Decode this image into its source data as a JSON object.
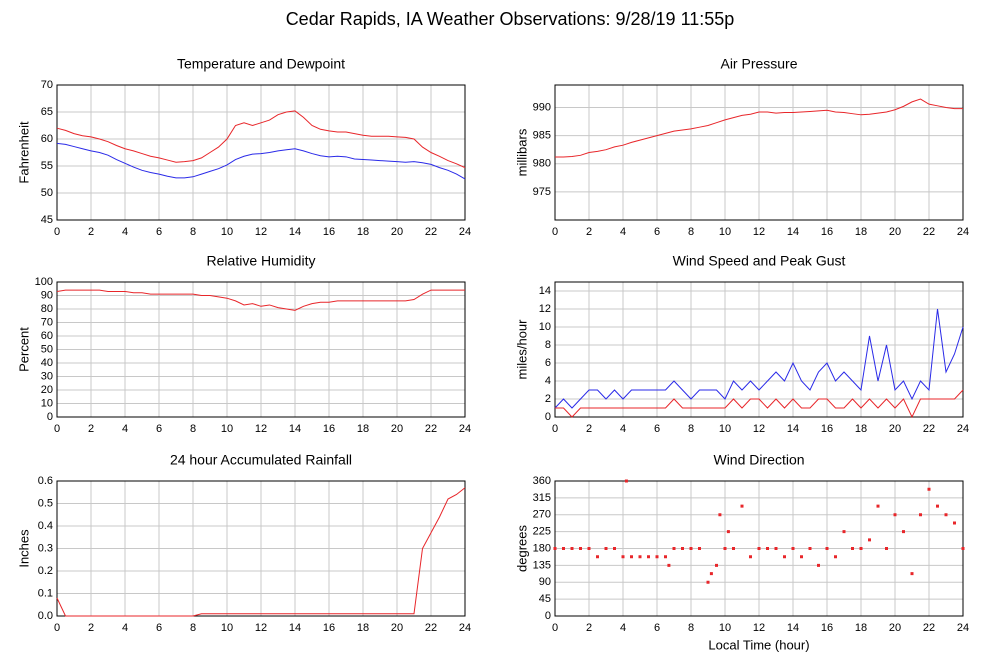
{
  "title": "Cedar Rapids, IA Weather Observations: 9/28/19 11:55p",
  "chart_data": [
    {
      "type": "line",
      "title": "Temperature and Dewpoint",
      "ylabel": "Fahrenheit",
      "grid": true,
      "x": [
        0,
        0.5,
        1,
        1.5,
        2,
        2.5,
        3,
        3.5,
        4,
        4.5,
        5,
        5.5,
        6,
        6.5,
        7,
        7.5,
        8,
        8.5,
        9,
        9.5,
        10,
        10.5,
        11,
        11.5,
        12,
        12.5,
        13,
        13.5,
        14,
        14.5,
        15,
        15.5,
        16,
        16.5,
        17,
        17.5,
        18,
        18.5,
        19,
        19.5,
        20,
        20.5,
        21,
        21.5,
        22,
        22.5,
        23,
        23.5,
        24
      ],
      "xlim": [
        0,
        24
      ],
      "xticks": [
        0,
        2,
        4,
        6,
        8,
        10,
        12,
        14,
        16,
        18,
        20,
        22,
        24
      ],
      "ylim": [
        45,
        70
      ],
      "yticks": [
        45,
        50,
        55,
        60,
        65,
        70
      ],
      "series": [
        {
          "color": "#e8262a",
          "values": [
            62,
            61.6,
            61,
            60.6,
            60.4,
            60,
            59.5,
            58.8,
            58.2,
            57.8,
            57.3,
            56.8,
            56.5,
            56.1,
            55.7,
            55.8,
            56,
            56.5,
            57.5,
            58.5,
            60,
            62.5,
            63,
            62.5,
            63,
            63.5,
            64.5,
            65,
            65.2,
            64,
            62.5,
            61.8,
            61.5,
            61.3,
            61.3,
            61,
            60.7,
            60.5,
            60.5,
            60.5,
            60.4,
            60.3,
            60,
            58.5,
            57.5,
            56.8,
            56,
            55.4,
            54.7
          ]
        },
        {
          "color": "#2a2ae8",
          "values": [
            59.2,
            59,
            58.6,
            58.2,
            57.8,
            57.5,
            57,
            56.2,
            55.5,
            54.8,
            54.2,
            53.8,
            53.5,
            53.1,
            52.8,
            52.8,
            53,
            53.5,
            54,
            54.5,
            55.2,
            56.2,
            56.8,
            57.2,
            57.3,
            57.5,
            57.8,
            58,
            58.2,
            57.8,
            57.3,
            56.9,
            56.7,
            56.8,
            56.7,
            56.3,
            56.2,
            56.1,
            56,
            55.9,
            55.8,
            55.7,
            55.8,
            55.6,
            55.3,
            54.7,
            54.2,
            53.5,
            52.6
          ]
        }
      ]
    },
    {
      "type": "line",
      "title": "Air Pressure",
      "ylabel": "millibars",
      "grid": true,
      "x": [
        0,
        0.5,
        1,
        1.5,
        2,
        2.5,
        3,
        3.5,
        4,
        4.5,
        5,
        5.5,
        6,
        6.5,
        7,
        7.5,
        8,
        8.5,
        9,
        9.5,
        10,
        10.5,
        11,
        11.5,
        12,
        12.5,
        13,
        13.5,
        14,
        14.5,
        15,
        15.5,
        16,
        16.5,
        17,
        17.5,
        18,
        18.5,
        19,
        19.5,
        20,
        20.5,
        21,
        21.5,
        22,
        22.5,
        23,
        23.5,
        24
      ],
      "xlim": [
        0,
        24
      ],
      "xticks": [
        0,
        2,
        4,
        6,
        8,
        10,
        12,
        14,
        16,
        18,
        20,
        22,
        24
      ],
      "ylim": [
        970,
        994
      ],
      "yticks": [
        975,
        980,
        985,
        990
      ],
      "series": [
        {
          "color": "#e8262a",
          "values": [
            981.2,
            981.2,
            981.3,
            981.5,
            982,
            982.2,
            982.5,
            983,
            983.3,
            983.8,
            984.2,
            984.6,
            985,
            985.4,
            985.8,
            986,
            986.2,
            986.5,
            986.8,
            987.3,
            987.8,
            988.2,
            988.6,
            988.8,
            989.2,
            989.2,
            989,
            989.1,
            989.1,
            989.2,
            989.3,
            989.4,
            989.5,
            989.2,
            989.1,
            988.9,
            988.7,
            988.8,
            989,
            989.2,
            989.6,
            990.2,
            991,
            991.5,
            990.6,
            990.3,
            990,
            989.8,
            989.8
          ]
        }
      ]
    },
    {
      "type": "line",
      "title": "Relative Humidity",
      "ylabel": "Percent",
      "grid": true,
      "x": [
        0,
        0.5,
        1,
        1.5,
        2,
        2.5,
        3,
        3.5,
        4,
        4.5,
        5,
        5.5,
        6,
        6.5,
        7,
        7.5,
        8,
        8.5,
        9,
        9.5,
        10,
        10.5,
        11,
        11.5,
        12,
        12.5,
        13,
        13.5,
        14,
        14.5,
        15,
        15.5,
        16,
        16.5,
        17,
        17.5,
        18,
        18.5,
        19,
        19.5,
        20,
        20.5,
        21,
        21.5,
        22,
        22.5,
        23,
        23.5,
        24
      ],
      "xlim": [
        0,
        24
      ],
      "xticks": [
        0,
        2,
        4,
        6,
        8,
        10,
        12,
        14,
        16,
        18,
        20,
        22,
        24
      ],
      "ylim": [
        0,
        100
      ],
      "yticks": [
        0,
        10,
        20,
        30,
        40,
        50,
        60,
        70,
        80,
        90,
        100
      ],
      "series": [
        {
          "color": "#e8262a",
          "values": [
            93,
            94,
            94,
            94,
            94,
            94,
            93,
            93,
            93,
            92,
            92,
            91,
            91,
            91,
            91,
            91,
            91,
            90,
            90,
            89,
            88,
            86,
            83,
            84,
            82,
            83,
            81,
            80,
            79,
            82,
            84,
            85,
            85,
            86,
            86,
            86,
            86,
            86,
            86,
            86,
            86,
            86,
            87,
            91,
            94,
            94,
            94,
            94,
            94
          ]
        }
      ]
    },
    {
      "type": "line",
      "title": "Wind Speed and Peak Gust",
      "ylabel": "miles/hour",
      "grid": true,
      "x": [
        0,
        0.5,
        1,
        1.5,
        2,
        2.5,
        3,
        3.5,
        4,
        4.5,
        5,
        5.5,
        6,
        6.5,
        7,
        7.5,
        8,
        8.5,
        9,
        9.5,
        10,
        10.5,
        11,
        11.5,
        12,
        12.5,
        13,
        13.5,
        14,
        14.5,
        15,
        15.5,
        16,
        16.5,
        17,
        17.5,
        18,
        18.5,
        19,
        19.5,
        20,
        20.5,
        21,
        21.5,
        22,
        22.5,
        23,
        23.5,
        24
      ],
      "xlim": [
        0,
        24
      ],
      "xticks": [
        0,
        2,
        4,
        6,
        8,
        10,
        12,
        14,
        16,
        18,
        20,
        22,
        24
      ],
      "ylim": [
        0,
        15
      ],
      "yticks": [
        0,
        2,
        4,
        6,
        8,
        10,
        12,
        14
      ],
      "series": [
        {
          "color": "#2a2ae8",
          "values": [
            1,
            2,
            1,
            2,
            3,
            3,
            2,
            3,
            2,
            3,
            3,
            3,
            3,
            3,
            4,
            3,
            2,
            3,
            3,
            3,
            2,
            4,
            3,
            4,
            3,
            4,
            5,
            4,
            6,
            4,
            3,
            5,
            6,
            4,
            5,
            4,
            3,
            9,
            4,
            8,
            3,
            4,
            2,
            4,
            3,
            12,
            5,
            7,
            10
          ]
        },
        {
          "color": "#e8262a",
          "values": [
            1,
            1,
            0,
            1,
            1,
            1,
            1,
            1,
            1,
            1,
            1,
            1,
            1,
            1,
            2,
            1,
            1,
            1,
            1,
            1,
            1,
            2,
            1,
            2,
            2,
            1,
            2,
            1,
            2,
            1,
            1,
            2,
            2,
            1,
            1,
            2,
            1,
            2,
            1,
            2,
            1,
            2,
            0,
            2,
            2,
            2,
            2,
            2,
            3
          ]
        }
      ]
    },
    {
      "type": "line",
      "title": "24 hour Accumulated Rainfall",
      "ylabel": "Inches",
      "grid": true,
      "x": [
        0,
        0.5,
        1,
        1.5,
        2,
        2.5,
        3,
        3.5,
        4,
        4.5,
        5,
        5.5,
        6,
        6.5,
        7,
        7.5,
        8,
        8.5,
        9,
        9.5,
        10,
        10.5,
        11,
        11.5,
        12,
        12.5,
        13,
        13.5,
        14,
        14.5,
        15,
        15.5,
        16,
        16.5,
        17,
        17.5,
        18,
        18.5,
        19,
        19.5,
        20,
        20.5,
        21,
        21.5,
        22,
        22.5,
        23,
        23.5,
        24
      ],
      "xlim": [
        0,
        24
      ],
      "xticks": [
        0,
        2,
        4,
        6,
        8,
        10,
        12,
        14,
        16,
        18,
        20,
        22,
        24
      ],
      "ylim": [
        0,
        0.6
      ],
      "yticks": [
        {
          "value": 0,
          "label": "0.0"
        },
        0.1,
        0.2,
        0.3,
        0.4,
        0.5,
        0.6
      ],
      "series": [
        {
          "color": "#e8262a",
          "values": [
            0.08,
            0,
            0,
            0,
            0,
            0,
            0,
            0,
            0,
            0,
            0,
            0,
            0,
            0,
            0,
            0,
            0,
            0.01,
            0.01,
            0.01,
            0.01,
            0.01,
            0.01,
            0.01,
            0.01,
            0.01,
            0.01,
            0.01,
            0.01,
            0.01,
            0.01,
            0.01,
            0.01,
            0.01,
            0.01,
            0.01,
            0.01,
            0.01,
            0.01,
            0.01,
            0.01,
            0.01,
            0.01,
            0.3,
            0.37,
            0.44,
            0.52,
            0.54,
            0.57
          ]
        }
      ]
    },
    {
      "type": "scatter",
      "title": "Wind Direction",
      "ylabel": "degrees",
      "xlabel": "Local Time (hour)",
      "grid": true,
      "x": [
        0,
        0.5,
        1,
        1.5,
        2,
        2.5,
        3,
        3.5,
        4,
        4.2,
        4.5,
        5,
        5.5,
        6,
        6.5,
        6.7,
        7,
        7.5,
        8,
        8.5,
        9,
        9.2,
        9.5,
        9.7,
        10,
        10.2,
        10.5,
        11,
        11.5,
        12,
        12.5,
        13,
        13.5,
        14,
        14.5,
        15,
        15.5,
        16,
        16.5,
        17,
        17.5,
        18,
        18.5,
        19,
        19.5,
        20,
        20.5,
        21,
        21.5,
        22,
        22.5,
        23,
        23.5,
        24
      ],
      "xlim": [
        0,
        24
      ],
      "xticks": [
        0,
        2,
        4,
        6,
        8,
        10,
        12,
        14,
        16,
        18,
        20,
        22,
        24
      ],
      "ylim": [
        0,
        360
      ],
      "yticks": [
        0,
        45,
        90,
        135,
        180,
        225,
        270,
        315,
        360
      ],
      "series": [
        {
          "color": "#e8262a",
          "values": [
            180,
            180,
            180,
            180,
            180,
            158,
            180,
            180,
            158,
            360,
            158,
            158,
            158,
            158,
            158,
            135,
            180,
            180,
            180,
            180,
            90,
            113,
            135,
            270,
            180,
            225,
            180,
            293,
            158,
            180,
            180,
            180,
            158,
            180,
            158,
            180,
            135,
            180,
            158,
            225,
            180,
            180,
            203,
            293,
            180,
            270,
            225,
            113,
            270,
            338,
            293,
            270,
            248,
            180
          ]
        }
      ]
    }
  ]
}
